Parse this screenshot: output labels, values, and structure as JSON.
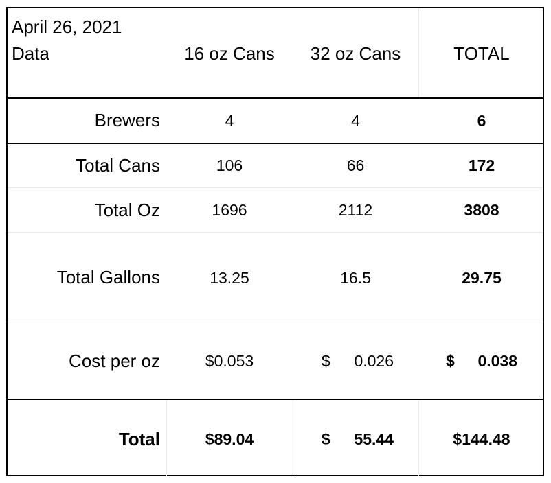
{
  "header": {
    "date": "April 26, 2021",
    "label": "Data",
    "columns": [
      "16 oz Cans",
      "32 oz Cans",
      "TOTAL"
    ]
  },
  "rows": {
    "brewers": {
      "label": "Brewers",
      "c16": "4",
      "c32": "4",
      "total": "6"
    },
    "total_cans": {
      "label": "Total Cans",
      "c16": "106",
      "c32": "66",
      "total": "172"
    },
    "total_oz": {
      "label": "Total Oz",
      "c16": "1696",
      "c32": "2112",
      "total": "3808"
    },
    "total_gallons": {
      "label": "Total Gallons",
      "c16": "13.25",
      "c32": "16.5",
      "total": "29.75"
    },
    "cost_per_oz": {
      "label": "Cost per oz",
      "c16": "$0.053",
      "c32_sym": "$",
      "c32": "0.026",
      "total_sym": "$",
      "total": "0.038"
    },
    "total": {
      "label": "Total",
      "c16": "$89.04",
      "c32_sym": "$",
      "c32": "55.44",
      "total": "$144.48"
    }
  }
}
